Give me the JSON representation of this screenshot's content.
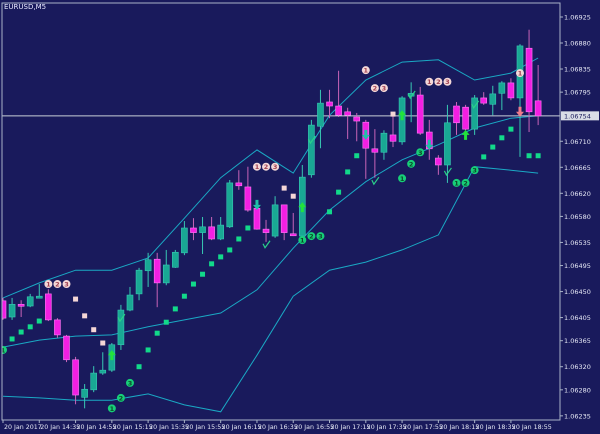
{
  "window": {
    "title": "EURUSD,M5"
  },
  "colors": {
    "background": "#191a5c",
    "frame": "#a9b3c8",
    "bull": "#19a894",
    "bull_border": "#38c9b4",
    "bear": "#f21fe3",
    "bear_wick": "#c864b8",
    "bands": "#1aa9c4",
    "stop_dot": "#12d98a",
    "alt_dot": "#f5d6d6",
    "price_line": "#c9cfd9",
    "marker_white": "#f3d8d8",
    "marker_green": "#17cf78",
    "arrow_up": "#22e23c",
    "arrow_down": "#1fbfa8",
    "arrow_up_alt": "#f21fe3",
    "arrow_down_alt": "#f07a8a",
    "check": "#2ad08a"
  },
  "chart_data": {
    "type": "candlestick",
    "symbol": "EURUSD",
    "timeframe": "M5",
    "ylim": [
      1.0622,
      1.0696
    ],
    "current_price": "1.06754",
    "y_ticks": [
      "1.06925",
      "1.06880",
      "1.06835",
      "1.06795",
      "1.06710",
      "1.06665",
      "1.06620",
      "1.06580",
      "1.06535",
      "1.06495",
      "1.06450",
      "1.06405",
      "1.06365",
      "1.06320",
      "1.06280",
      "1.06235"
    ],
    "x_ticks": [
      {
        "label": "20 Jan 2017",
        "time": "14:15"
      },
      {
        "label": "20 Jan 14:35",
        "time": "14:35"
      },
      {
        "label": "20 Jan 14:55",
        "time": "14:55"
      },
      {
        "label": "20 Jan 15:15",
        "time": "15:15"
      },
      {
        "label": "20 Jan 15:35",
        "time": "15:35"
      },
      {
        "label": "20 Jan 15:55",
        "time": "15:55"
      },
      {
        "label": "20 Jan 16:15",
        "time": "16:15"
      },
      {
        "label": "20 Jan 16:35",
        "time": "16:35"
      },
      {
        "label": "20 Jan 16:55",
        "time": "16:55"
      },
      {
        "label": "20 Jan 17:15",
        "time": "17:15"
      },
      {
        "label": "20 Jan 17:35",
        "time": "17:35"
      },
      {
        "label": "20 Jan 17:55",
        "time": "17:55"
      },
      {
        "label": "20 Jan 18:15",
        "time": "18:15"
      },
      {
        "label": "20 Jan 18:35",
        "time": "18:35"
      },
      {
        "label": "20 Jan 18:55",
        "time": "18:55"
      }
    ],
    "candles_fields": [
      "time",
      "open",
      "high",
      "low",
      "close"
    ],
    "candles": [
      [
        "14:15",
        1.06434,
        1.06439,
        1.06401,
        1.06404
      ],
      [
        "14:20",
        1.06406,
        1.06439,
        1.06401,
        1.06428
      ],
      [
        "14:25",
        1.06428,
        1.06435,
        1.06406,
        1.06427
      ],
      [
        "14:30",
        1.06425,
        1.06446,
        1.06423,
        1.06441
      ],
      [
        "14:35",
        1.06441,
        1.06463,
        1.06439,
        1.06442
      ],
      [
        "14:40",
        1.06446,
        1.06454,
        1.06399,
        1.06401
      ],
      [
        "14:45",
        1.06401,
        1.06404,
        1.0637,
        1.06375
      ],
      [
        "14:50",
        1.06373,
        1.06375,
        1.06328,
        1.06332
      ],
      [
        "14:55",
        1.06332,
        1.06337,
        1.06255,
        1.06271
      ],
      [
        "15:00",
        1.06267,
        1.0629,
        1.06248,
        1.06281
      ],
      [
        "15:05",
        1.0628,
        1.06321,
        1.06276,
        1.06309
      ],
      [
        "15:10",
        1.06309,
        1.06345,
        1.06306,
        1.06314
      ],
      [
        "15:15",
        1.06314,
        1.06361,
        1.06311,
        1.06358
      ],
      [
        "15:20",
        1.06358,
        1.06427,
        1.06349,
        1.06418
      ],
      [
        "15:25",
        1.06418,
        1.06458,
        1.06416,
        1.06444
      ],
      [
        "15:30",
        1.06446,
        1.06491,
        1.06435,
        1.06487
      ],
      [
        "15:35",
        1.06486,
        1.06517,
        1.06458,
        1.06505
      ],
      [
        "15:40",
        1.06506,
        1.06517,
        1.06423,
        1.06465
      ],
      [
        "15:45",
        1.06465,
        1.06522,
        1.06461,
        1.06496
      ],
      [
        "15:50",
        1.06492,
        1.06522,
        1.06491,
        1.06518
      ],
      [
        "15:55",
        1.06517,
        1.06572,
        1.06513,
        1.0656
      ],
      [
        "16:00",
        1.0656,
        1.06577,
        1.06539,
        1.06552
      ],
      [
        "16:05",
        1.06552,
        1.06579,
        1.06515,
        1.06562
      ],
      [
        "16:10",
        1.06562,
        1.06579,
        1.06539,
        1.06541
      ],
      [
        "16:15",
        1.06541,
        1.06579,
        1.06539,
        1.06565
      ],
      [
        "16:20",
        1.06562,
        1.06643,
        1.0656,
        1.06638
      ],
      [
        "16:25",
        1.06638,
        1.0666,
        1.06626,
        1.06633
      ],
      [
        "16:30",
        1.06631,
        1.06666,
        1.06588,
        1.06591
      ],
      [
        "16:35",
        1.06594,
        1.066,
        1.06557,
        1.06558
      ],
      [
        "16:40",
        1.06558,
        1.06574,
        1.06536,
        1.06552
      ],
      [
        "16:45",
        1.06546,
        1.06615,
        1.06543,
        1.066
      ],
      [
        "16:50",
        1.066,
        1.066,
        1.06539,
        1.06552
      ],
      [
        "16:55",
        1.0655,
        1.06586,
        1.06546,
        1.06548
      ],
      [
        "17:00",
        1.06546,
        1.06669,
        1.06543,
        1.06648
      ],
      [
        "17:05",
        1.06652,
        1.06747,
        1.06647,
        1.06738
      ],
      [
        "17:10",
        1.06736,
        1.06799,
        1.06698,
        1.06776
      ],
      [
        "17:15",
        1.06778,
        1.06799,
        1.0675,
        1.06771
      ],
      [
        "17:20",
        1.06771,
        1.06832,
        1.06752,
        1.06755
      ],
      [
        "17:25",
        1.06761,
        1.06768,
        1.06714,
        1.06755
      ],
      [
        "17:30",
        1.06752,
        1.06759,
        1.0671,
        1.06745
      ],
      [
        "17:35",
        1.06743,
        1.06747,
        1.06645,
        1.06698
      ],
      [
        "17:40",
        1.06697,
        1.06731,
        1.06647,
        1.06691
      ],
      [
        "17:45",
        1.06691,
        1.06729,
        1.06678,
        1.06724
      ],
      [
        "17:50",
        1.06721,
        1.06759,
        1.067,
        1.0671
      ],
      [
        "17:55",
        1.06709,
        1.06788,
        1.06704,
        1.06785
      ],
      [
        "18:00",
        1.06788,
        1.06812,
        1.06743,
        1.06793
      ],
      [
        "18:05",
        1.0679,
        1.06804,
        1.06721,
        1.06724
      ],
      [
        "18:10",
        1.06726,
        1.06747,
        1.06678,
        1.06697
      ],
      [
        "18:15",
        1.06681,
        1.06686,
        1.06652,
        1.06669
      ],
      [
        "18:20",
        1.06669,
        1.06773,
        1.06638,
        1.06742
      ],
      [
        "18:25",
        1.06771,
        1.06778,
        1.06721,
        1.06742
      ],
      [
        "18:30",
        1.06769,
        1.06773,
        1.06729,
        1.06731
      ],
      [
        "18:35",
        1.06731,
        1.0679,
        1.06721,
        1.06785
      ],
      [
        "18:40",
        1.06785,
        1.06795,
        1.06773,
        1.06776
      ],
      [
        "18:45",
        1.06774,
        1.06806,
        1.06755,
        1.06792
      ],
      [
        "18:50",
        1.06793,
        1.06814,
        1.06764,
        1.06811
      ],
      [
        "18:55",
        1.06811,
        1.06819,
        1.06781,
        1.06785
      ],
      [
        "19:00",
        1.06785,
        1.06878,
        1.06683,
        1.06875
      ],
      [
        "19:05",
        1.06871,
        1.06903,
        1.06726,
        1.06761
      ],
      [
        "19:10",
        1.0678,
        1.06842,
        1.06738,
        1.06754
      ]
    ],
    "bollinger_bands": {
      "times": [
        "14:15",
        "14:35",
        "14:55",
        "15:15",
        "15:35",
        "15:55",
        "16:15",
        "16:35",
        "16:55",
        "17:15",
        "17:35",
        "17:55",
        "18:15",
        "18:35",
        "18:55",
        "19:10"
      ],
      "upper": [
        1.06439,
        1.06465,
        1.06487,
        1.06487,
        1.06508,
        1.06577,
        1.06647,
        1.06695,
        1.06655,
        1.06755,
        1.06816,
        1.06847,
        1.06851,
        1.06816,
        1.06828,
        1.06854
      ],
      "middle": [
        1.06354,
        1.06366,
        1.06373,
        1.06375,
        1.06389,
        1.06401,
        1.06413,
        1.06453,
        1.06525,
        1.06591,
        1.0664,
        1.06678,
        1.06704,
        1.06733,
        1.0675,
        1.06754
      ],
      "lower": [
        1.06269,
        1.06266,
        1.06262,
        1.06262,
        1.06273,
        1.06254,
        1.06242,
        1.0634,
        1.06442,
        1.06487,
        1.06501,
        1.06522,
        1.06548,
        1.06666,
        1.0666,
        1.06655
      ]
    },
    "stop_dots": [
      [
        "14:20",
        1.06368,
        "green"
      ],
      [
        "14:25",
        1.0638,
        "green"
      ],
      [
        "14:30",
        1.06389,
        "green"
      ],
      [
        "14:35",
        1.06399,
        "green"
      ],
      [
        "14:55",
        1.06437,
        "pink"
      ],
      [
        "15:00",
        1.06408,
        "pink"
      ],
      [
        "15:05",
        1.06384,
        "pink"
      ],
      [
        "15:10",
        1.06361,
        "pink"
      ],
      [
        "15:30",
        1.0632,
        "green"
      ],
      [
        "15:35",
        1.06349,
        "green"
      ],
      [
        "15:40",
        1.06378,
        "green"
      ],
      [
        "15:45",
        1.06397,
        "green"
      ],
      [
        "15:50",
        1.0642,
        "green"
      ],
      [
        "15:55",
        1.06442,
        "green"
      ],
      [
        "16:00",
        1.06463,
        "green"
      ],
      [
        "16:05",
        1.0648,
        "green"
      ],
      [
        "16:10",
        1.06498,
        "green"
      ],
      [
        "16:15",
        1.0651,
        "green"
      ],
      [
        "16:20",
        1.06522,
        "green"
      ],
      [
        "16:25",
        1.06541,
        "green"
      ],
      [
        "16:30",
        1.0656,
        "green"
      ],
      [
        "16:50",
        1.06629,
        "pink"
      ],
      [
        "16:55",
        1.06615,
        "pink"
      ],
      [
        "17:15",
        1.06588,
        "green"
      ],
      [
        "17:20",
        1.06622,
        "green"
      ],
      [
        "17:25",
        1.06657,
        "green"
      ],
      [
        "17:30",
        1.06685,
        "green"
      ],
      [
        "17:50",
        1.06757,
        "pink"
      ],
      [
        "18:40",
        1.06683,
        "green"
      ],
      [
        "18:45",
        1.067,
        "green"
      ],
      [
        "18:50",
        1.06716,
        "green"
      ],
      [
        "18:55",
        1.06731,
        "green"
      ],
      [
        "19:05",
        1.06685,
        "green"
      ],
      [
        "19:10",
        1.06685,
        "green"
      ]
    ],
    "count_markers": [
      [
        "14:15",
        1.06349,
        "1",
        "green"
      ],
      [
        "14:40",
        1.06463,
        "1",
        "white"
      ],
      [
        "14:45",
        1.06463,
        "2",
        "white"
      ],
      [
        "14:50",
        1.06463,
        "3",
        "white"
      ],
      [
        "15:15",
        1.06248,
        "1",
        "green"
      ],
      [
        "15:20",
        1.06266,
        "2",
        "green"
      ],
      [
        "15:25",
        1.06292,
        "3",
        "green"
      ],
      [
        "16:35",
        1.06666,
        "1",
        "white"
      ],
      [
        "16:40",
        1.06666,
        "2",
        "white"
      ],
      [
        "16:45",
        1.06666,
        "3",
        "white"
      ],
      [
        "17:00",
        1.06539,
        "1",
        "green"
      ],
      [
        "17:05",
        1.06546,
        "2",
        "green"
      ],
      [
        "17:10",
        1.06546,
        "3",
        "green"
      ],
      [
        "17:35",
        1.06833,
        "1",
        "white"
      ],
      [
        "17:40",
        1.06802,
        "2",
        "white"
      ],
      [
        "17:45",
        1.06802,
        "3",
        "white"
      ],
      [
        "17:55",
        1.06646,
        "1",
        "green"
      ],
      [
        "18:00",
        1.06671,
        "2",
        "green"
      ],
      [
        "18:05",
        1.06691,
        "3",
        "green"
      ],
      [
        "18:10",
        1.06813,
        "1",
        "white"
      ],
      [
        "18:15",
        1.06813,
        "2",
        "white"
      ],
      [
        "18:20",
        1.06813,
        "3",
        "white"
      ],
      [
        "18:25",
        1.06638,
        "1",
        "green"
      ],
      [
        "18:30",
        1.06638,
        "2",
        "green"
      ],
      [
        "18:35",
        1.0666,
        "3",
        "green"
      ],
      [
        "19:00",
        1.06828,
        "1",
        "white"
      ]
    ],
    "arrows": [
      [
        "15:15",
        1.0634,
        "up",
        "arrow_up"
      ],
      [
        "17:00",
        1.06596,
        "up",
        "arrow_up"
      ],
      [
        "17:55",
        1.06755,
        "up",
        "arrow_up"
      ],
      [
        "18:30",
        1.06721,
        "up",
        "arrow_up"
      ],
      [
        "16:35",
        1.066,
        "down",
        "arrow_down"
      ],
      [
        "17:35",
        1.06721,
        "down",
        "arrow_down"
      ],
      [
        "18:10",
        1.06704,
        "down",
        "arrow_down"
      ],
      [
        "18:25",
        1.06764,
        "up",
        "arrow_up_alt"
      ],
      [
        "19:00",
        1.06761,
        "down",
        "arrow_down_alt"
      ]
    ],
    "checks": [
      [
        "15:20",
        1.06404
      ],
      [
        "16:40",
        1.06531
      ],
      [
        "17:05",
        1.06712
      ],
      [
        "17:40",
        1.06641
      ],
      [
        "18:00",
        1.0679
      ],
      [
        "18:20",
        1.06657
      ],
      [
        "18:35",
        1.06773
      ]
    ]
  }
}
